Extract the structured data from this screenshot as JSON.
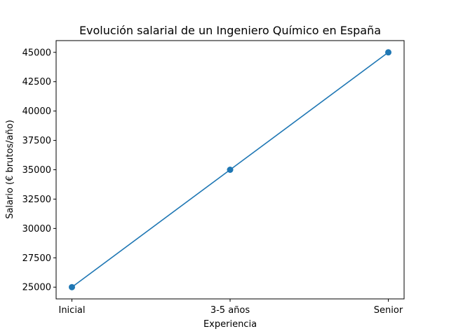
{
  "chart_data": {
    "type": "line",
    "title": "Evolución salarial de un Ingeniero Químico en España",
    "xlabel": "Experiencia",
    "ylabel": "Salario (€ brutos/año)",
    "categories": [
      "Inicial",
      "3-5 años",
      "Senior"
    ],
    "series": [
      {
        "values": [
          25000,
          35000,
          45000
        ],
        "color": "#1f77b4",
        "marker": "circle"
      }
    ],
    "ylim": [
      24000,
      46000
    ],
    "yticks": [
      25000,
      27500,
      30000,
      32500,
      35000,
      37500,
      40000,
      42500,
      45000
    ],
    "ytick_labels": [
      "25000",
      "27500",
      "30000",
      "32500",
      "35000",
      "37500",
      "40000",
      "42500",
      "45000"
    ],
    "grid": false,
    "legend": "none"
  }
}
